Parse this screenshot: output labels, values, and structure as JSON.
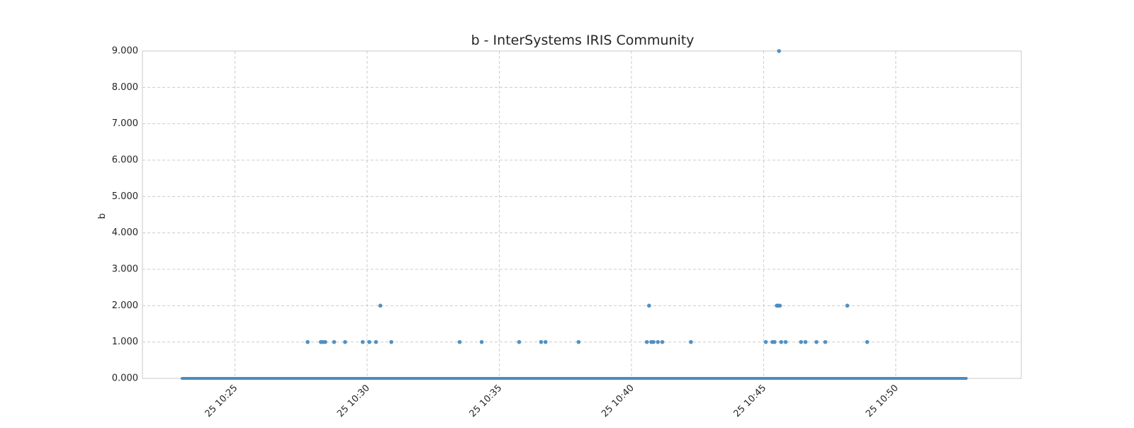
{
  "chart_data": {
    "type": "scatter",
    "title": "b - InterSystems IRIS Community",
    "xlabel": "",
    "ylabel": "b",
    "x_axis_kind": "time",
    "xlim": [
      "10:21:30",
      "10:54:45"
    ],
    "ylim": [
      0,
      9
    ],
    "y_ticks": [
      0,
      1,
      2,
      3,
      4,
      5,
      6,
      7,
      8,
      9
    ],
    "y_tick_labels": [
      "0.000",
      "1.000",
      "2.000",
      "3.000",
      "4.000",
      "5.000",
      "6.000",
      "7.000",
      "8.000",
      "9.000"
    ],
    "x_ticks": [
      "10:25:00",
      "10:30:00",
      "10:35:00",
      "10:40:00",
      "10:45:00",
      "10:50:00"
    ],
    "x_tick_labels": [
      "25 10:25",
      "25 10:30",
      "25 10:35",
      "25 10:40",
      "25 10:45",
      "25 10:50"
    ],
    "grid": true,
    "legend": "none",
    "color": "#4a8cc0",
    "baseline": {
      "y": 0,
      "x_start": "10:23:00",
      "x_end": "10:52:40"
    },
    "series": [
      {
        "points": [
          {
            "x": "10:27:45",
            "y": 1
          },
          {
            "x": "10:28:15",
            "y": 1
          },
          {
            "x": "10:28:20",
            "y": 1
          },
          {
            "x": "10:28:25",
            "y": 1
          },
          {
            "x": "10:28:45",
            "y": 1
          },
          {
            "x": "10:29:10",
            "y": 1
          },
          {
            "x": "10:29:50",
            "y": 1
          },
          {
            "x": "10:30:05",
            "y": 1
          },
          {
            "x": "10:30:20",
            "y": 1
          },
          {
            "x": "10:30:30",
            "y": 2
          },
          {
            "x": "10:30:55",
            "y": 1
          },
          {
            "x": "10:33:30",
            "y": 1
          },
          {
            "x": "10:34:20",
            "y": 1
          },
          {
            "x": "10:35:45",
            "y": 1
          },
          {
            "x": "10:36:35",
            "y": 1
          },
          {
            "x": "10:36:45",
            "y": 1
          },
          {
            "x": "10:38:00",
            "y": 1
          },
          {
            "x": "10:40:35",
            "y": 1
          },
          {
            "x": "10:40:40",
            "y": 2
          },
          {
            "x": "10:40:45",
            "y": 1
          },
          {
            "x": "10:40:50",
            "y": 1
          },
          {
            "x": "10:41:00",
            "y": 1
          },
          {
            "x": "10:41:10",
            "y": 1
          },
          {
            "x": "10:42:15",
            "y": 1
          },
          {
            "x": "10:45:05",
            "y": 1
          },
          {
            "x": "10:45:20",
            "y": 1
          },
          {
            "x": "10:45:25",
            "y": 1
          },
          {
            "x": "10:45:30",
            "y": 2
          },
          {
            "x": "10:45:33",
            "y": 2
          },
          {
            "x": "10:45:35",
            "y": 9
          },
          {
            "x": "10:45:37",
            "y": 2
          },
          {
            "x": "10:45:40",
            "y": 1
          },
          {
            "x": "10:45:50",
            "y": 1
          },
          {
            "x": "10:46:25",
            "y": 1
          },
          {
            "x": "10:46:35",
            "y": 1
          },
          {
            "x": "10:47:00",
            "y": 1
          },
          {
            "x": "10:47:20",
            "y": 1
          },
          {
            "x": "10:48:10",
            "y": 2
          },
          {
            "x": "10:48:55",
            "y": 1
          }
        ]
      }
    ]
  }
}
